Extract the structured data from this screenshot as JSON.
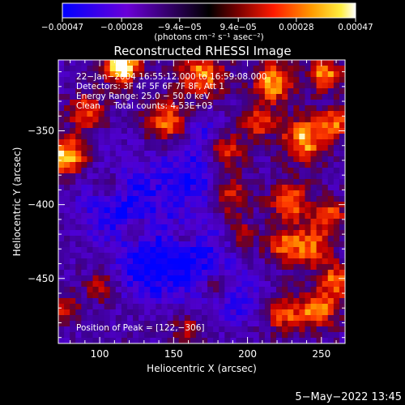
{
  "chart_data": {
    "type": "heatmap",
    "title": "Reconstructed RHESSI Image",
    "xlabel": "Heliocentric X (arcsec)",
    "ylabel": "Heliocentric Y (arcsec)",
    "xlim": [
      72,
      266
    ],
    "ylim": [
      -494,
      -302
    ],
    "xticks": [
      100,
      150,
      200,
      250
    ],
    "xtick_labels": [
      "100",
      "150",
      "200",
      "250"
    ],
    "yticks": [
      -350,
      -400,
      -450
    ],
    "ytick_labels": [
      "−350",
      "−400",
      "−450"
    ],
    "colorbar": {
      "range": [
        -0.00047,
        0.00047
      ],
      "ticks": [
        -0.00047,
        -0.00028,
        -9.4e-05,
        9.4e-05,
        0.00028,
        0.00047
      ],
      "tick_labels": [
        "−0.00047",
        "−0.00028",
        "−9.4e−05",
        "9.4e−05",
        "0.00028",
        "0.00047"
      ],
      "unit_label": "(photons cm⁻² s⁻¹ asec⁻²)"
    },
    "annotations": [
      "22−Jan−2004 16:55:12.000 to 16:59:08.000",
      "Detectors: 3F 4F 5F 6F 7F 8F, Att 1",
      "Energy Range: 25.0 − 50.0 keV",
      "Clean     Total counts: 4.53E+03"
    ],
    "peak_label": "Position of Peak = [122,−306]",
    "peak": [
      122,
      -306
    ],
    "grid": false,
    "colors": {
      "background": "#000000",
      "foreground": "#ffffff"
    }
  },
  "footer": {
    "date": "5−May−2022 13:45"
  }
}
